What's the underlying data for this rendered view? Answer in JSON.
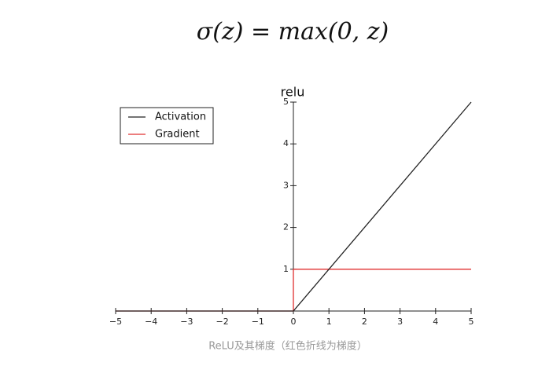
{
  "formula": "σ(z) = max(0, z)",
  "caption": "ReLU及其梯度（红色折线为梯度）",
  "chart_data": {
    "type": "line",
    "title": "relu",
    "x": [
      -5,
      0,
      0,
      5
    ],
    "series": [
      {
        "name": "Activation",
        "color": "#222222",
        "values": [
          0,
          0,
          0,
          5
        ]
      },
      {
        "name": "Gradient",
        "color": "#e03030",
        "values": [
          0,
          0,
          1,
          1
        ]
      }
    ],
    "xlim": [
      -5,
      5
    ],
    "ylim": [
      0,
      5
    ],
    "xticks": [
      {
        "value": -5,
        "label": "−5"
      },
      {
        "value": -4,
        "label": "−4"
      },
      {
        "value": -3,
        "label": "−3"
      },
      {
        "value": -2,
        "label": "−2"
      },
      {
        "value": -1,
        "label": "−1"
      },
      0,
      1,
      2,
      3,
      4,
      5
    ],
    "yticks": [
      1,
      2,
      3,
      4,
      5
    ],
    "legend": "upper-left"
  }
}
